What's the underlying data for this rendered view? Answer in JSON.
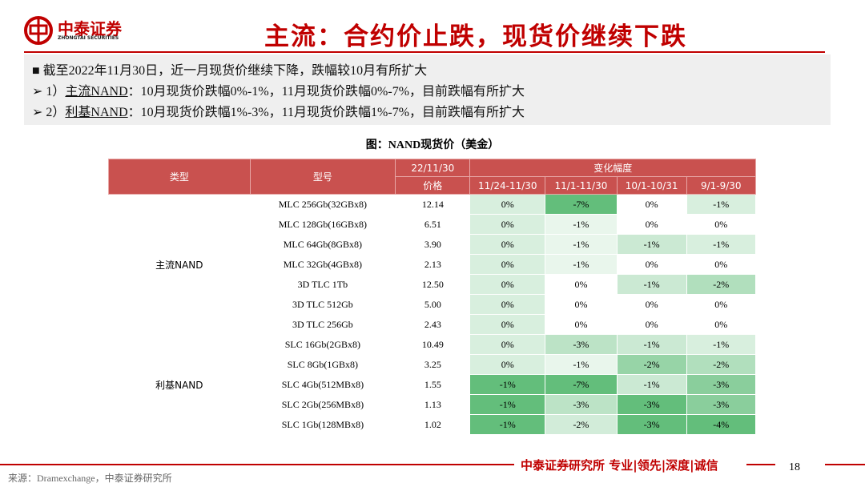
{
  "header": {
    "logo_name": "中泰证券",
    "logo_sub": "ZHONGTAI SECURITIES",
    "title": "主流：合约价止跌，现货价继续下跌"
  },
  "summary": {
    "headline": "截至2022年11月30日，近一月现货价继续下降，跌幅较10月有所扩大",
    "bullets": [
      {
        "prefix": "1）",
        "term": "主流NAND",
        "text": "：10月现货价跌幅0%-1%，11月现货价跌幅0%-7%，目前跌幅有所扩大"
      },
      {
        "prefix": "2）",
        "term": "利基NAND",
        "text": "：10月现货价跌幅1%-3%，11月现货价跌幅1%-7%，目前跌幅有所扩大"
      }
    ]
  },
  "caption": "图：NAND现货价（美金）",
  "table": {
    "col_type": "类型",
    "col_model": "型号",
    "col_date": "22/11/30",
    "col_price": "价格",
    "col_change": "变化幅度",
    "periods": [
      "11/24-11/30",
      "11/1-11/30",
      "10/1-10/31",
      "9/1-9/30"
    ],
    "groups": [
      {
        "name": "主流NAND",
        "rows": [
          {
            "model": "MLC 256Gb(32GBx8)",
            "price": "12.14",
            "changes": [
              "0%",
              "-7%",
              "0%",
              "-1%"
            ]
          },
          {
            "model": "MLC 128Gb(16GBx8)",
            "price": "6.51",
            "changes": [
              "0%",
              "-1%",
              "0%",
              "0%"
            ]
          },
          {
            "model": "MLC 64Gb(8GBx8)",
            "price": "3.90",
            "changes": [
              "0%",
              "-1%",
              "-1%",
              "-1%"
            ]
          },
          {
            "model": "MLC 32Gb(4GBx8)",
            "price": "2.13",
            "changes": [
              "0%",
              "-1%",
              "0%",
              "0%"
            ]
          },
          {
            "model": "3D TLC 1Tb",
            "price": "12.50",
            "changes": [
              "0%",
              "0%",
              "-1%",
              "-2%"
            ]
          },
          {
            "model": "3D TLC 512Gb",
            "price": "5.00",
            "changes": [
              "0%",
              "0%",
              "0%",
              "0%"
            ]
          },
          {
            "model": "3D TLC 256Gb",
            "price": "2.43",
            "changes": [
              "0%",
              "0%",
              "0%",
              "0%"
            ]
          }
        ]
      },
      {
        "name": "利基NAND",
        "rows": [
          {
            "model": "SLC 16Gb(2GBx8)",
            "price": "10.49",
            "changes": [
              "0%",
              "-3%",
              "-1%",
              "-1%"
            ]
          },
          {
            "model": "SLC 8Gb(1GBx8)",
            "price": "3.25",
            "changes": [
              "0%",
              "-1%",
              "-2%",
              "-2%"
            ]
          },
          {
            "model": "SLC 4Gb(512MBx8)",
            "price": "1.55",
            "changes": [
              "-1%",
              "-7%",
              "-1%",
              "-3%"
            ]
          },
          {
            "model": "SLC 2Gb(256MBx8)",
            "price": "1.13",
            "changes": [
              "-1%",
              "-3%",
              "-3%",
              "-3%"
            ]
          },
          {
            "model": "SLC 1Gb(128MBx8)",
            "price": "1.02",
            "changes": [
              "-1%",
              "-2%",
              "-3%",
              "-4%"
            ]
          }
        ]
      }
    ]
  },
  "footer": {
    "slogan": "中泰证券研究所 专业|领先|深度|诚信",
    "page": "18",
    "source": "来源：Dramexchange，中泰证券研究所"
  }
}
